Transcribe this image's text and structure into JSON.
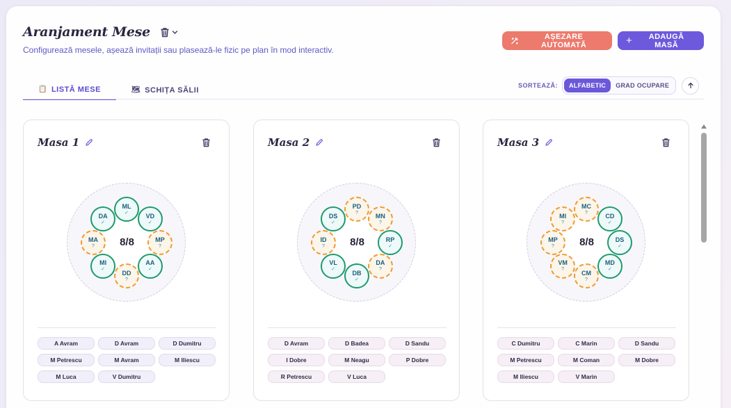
{
  "header": {
    "title": "Aranjament Mese",
    "subtitle": "Configurează mesele, așează invitații sau plasează-le fizic pe plan în mod interactiv.",
    "auto_button": "AȘEZARE AUTOMATĂ",
    "add_button": "ADAUGĂ MASĂ"
  },
  "tabs": [
    {
      "label": "LISTĂ MESE",
      "icon": "📋",
      "active": true
    },
    {
      "label": "SCHIȚA SĂLII",
      "icon": "🗺",
      "active": false
    }
  ],
  "sort": {
    "label": "SORTEAZĂ:",
    "options": [
      "ALFABETIC",
      "GRAD OCUPARE"
    ],
    "selected": "ALFABETIC",
    "direction_icon": "arrow-up-icon"
  },
  "colors": {
    "accent": "#6a58da",
    "auto_button": "#ec7a6d",
    "confirmed_seat": "#1e9a6d",
    "pending_seat": "#ef9a2f"
  },
  "tables": [
    {
      "name": "Masa 1",
      "occupancy": "8/8",
      "seats": [
        {
          "initials": "ML",
          "status": "✓",
          "confirmed": true
        },
        {
          "initials": "VD",
          "status": "✓",
          "confirmed": true
        },
        {
          "initials": "MP",
          "status": "?",
          "confirmed": false
        },
        {
          "initials": "AA",
          "status": "✓",
          "confirmed": true
        },
        {
          "initials": "DD",
          "status": "?",
          "confirmed": false
        },
        {
          "initials": "MI",
          "status": "✓",
          "confirmed": true
        },
        {
          "initials": "MA",
          "status": "?",
          "confirmed": false
        },
        {
          "initials": "DA",
          "status": "✓",
          "confirmed": true
        }
      ],
      "guests": [
        "A Avram",
        "D Avram",
        "D Dumitru",
        "M Petrescu",
        "M Avram",
        "M Iliescu",
        "M Luca",
        "V Dumitru"
      ]
    },
    {
      "name": "Masa 2",
      "occupancy": "8/8",
      "seats": [
        {
          "initials": "PD",
          "status": "?",
          "confirmed": false
        },
        {
          "initials": "MN",
          "status": "?",
          "confirmed": false
        },
        {
          "initials": "RP",
          "status": "✓",
          "confirmed": true
        },
        {
          "initials": "DA",
          "status": "?",
          "confirmed": false
        },
        {
          "initials": "DB",
          "status": "✓",
          "confirmed": true
        },
        {
          "initials": "VL",
          "status": "✓",
          "confirmed": true
        },
        {
          "initials": "ID",
          "status": "?",
          "confirmed": false
        },
        {
          "initials": "DS",
          "status": "✓",
          "confirmed": true
        }
      ],
      "guests": [
        "D Avram",
        "D Badea",
        "D Sandu",
        "I Dobre",
        "M Neagu",
        "P Dobre",
        "R Petrescu",
        "V Luca"
      ]
    },
    {
      "name": "Masa 3",
      "occupancy": "8/8",
      "seats": [
        {
          "initials": "MC",
          "status": "?",
          "confirmed": false
        },
        {
          "initials": "CD",
          "status": "✓",
          "confirmed": true
        },
        {
          "initials": "DS",
          "status": "✓",
          "confirmed": true
        },
        {
          "initials": "MD",
          "status": "✓",
          "confirmed": true
        },
        {
          "initials": "CM",
          "status": "?",
          "confirmed": false
        },
        {
          "initials": "VM",
          "status": "?",
          "confirmed": false
        },
        {
          "initials": "MP",
          "status": "?",
          "confirmed": false
        },
        {
          "initials": "MI",
          "status": "?",
          "confirmed": false
        }
      ],
      "guests": [
        "C Dumitru",
        "C Marin",
        "D Sandu",
        "M Petrescu",
        "M Coman",
        "M Dobre",
        "M Iliescu",
        "V Marin"
      ]
    }
  ]
}
